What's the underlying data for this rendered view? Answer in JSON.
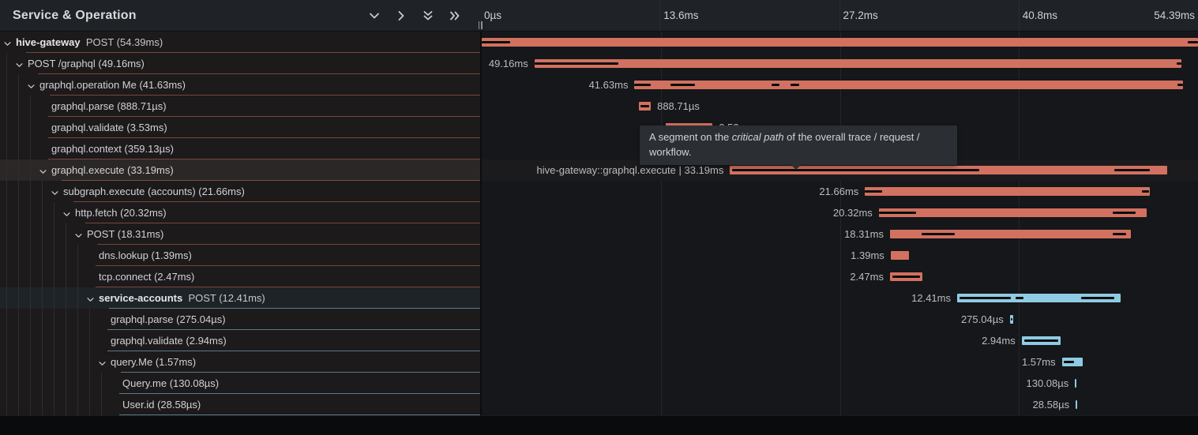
{
  "colors": {
    "salmon": "#d2715f",
    "blue": "#8fcbe2",
    "salmon_underline": "rgba(210,113,95,0.50)",
    "blue_underline": "rgba(143,203,226,0.55)",
    "critical_path_black": "#0c0c0e"
  },
  "header": {
    "title": "Service & Operation",
    "icons": [
      "chevron-down",
      "chevron-right",
      "chevrons-down",
      "chevrons-right"
    ]
  },
  "timeline": {
    "total_ms": 54.39,
    "axis_ticks": [
      {
        "label": "0µs",
        "pos_pct": 0,
        "align": "left"
      },
      {
        "label": "13.6ms",
        "pos_pct": 25,
        "align": "left"
      },
      {
        "label": "27.2ms",
        "pos_pct": 50,
        "align": "left"
      },
      {
        "label": "40.8ms",
        "pos_pct": 75,
        "align": "left"
      },
      {
        "label": "54.39ms",
        "pos_pct": 100,
        "align": "right"
      }
    ]
  },
  "tooltip": {
    "pre": "A segment on the ",
    "italic": "critical path",
    "post": " of the overall trace / request / workflow."
  },
  "chart_data": {
    "type": "gantt-trace-waterfall",
    "title": "Service & Operation trace",
    "x_unit": "ms",
    "x_range": [
      0,
      54.39
    ],
    "services": [
      "hive-gateway",
      "service-accounts"
    ]
  },
  "rows": [
    {
      "service": "hive-gateway",
      "label": "POST (54.39ms)",
      "depth": 0,
      "expandable": true,
      "color": "salmon",
      "bar": {
        "start_ms": 0,
        "duration_ms": 54.39,
        "label": "",
        "label_side": "none",
        "critical_segments": [
          [
            0,
            4
          ],
          [
            98.6,
            100
          ]
        ]
      }
    },
    {
      "label": "POST /graphql (49.16ms)",
      "depth": 1,
      "expandable": true,
      "color": "salmon",
      "bar": {
        "start_ms": 4.0,
        "duration_ms": 49.16,
        "label": "49.16ms",
        "label_side": "left",
        "critical_segments": [
          [
            0,
            13
          ],
          [
            99.2,
            100
          ]
        ]
      }
    },
    {
      "label": "graphql.operation Me (41.63ms)",
      "depth": 2,
      "expandable": true,
      "color": "salmon",
      "bar": {
        "start_ms": 11.6,
        "duration_ms": 41.63,
        "label": "41.63ms",
        "label_side": "left",
        "critical_segments": [
          [
            0,
            3
          ],
          [
            6.5,
            11
          ],
          [
            25,
            26.5
          ],
          [
            28.5,
            30
          ],
          [
            99,
            100
          ]
        ]
      }
    },
    {
      "label": "graphql.parse (888.71µs)",
      "depth": 3,
      "expandable": false,
      "color": "salmon",
      "bar": {
        "start_ms": 11.95,
        "duration_ms": 0.889,
        "label": "888.71µs",
        "label_side": "right",
        "critical_segments": [
          [
            14,
            86
          ]
        ]
      }
    },
    {
      "label": "graphql.validate (3.53ms)",
      "depth": 3,
      "expandable": false,
      "color": "salmon",
      "bar": {
        "start_ms": 14.0,
        "duration_ms": 3.53,
        "label": "3.53ms",
        "label_side": "right",
        "critical_segments": [
          [
            8,
            92
          ]
        ]
      }
    },
    {
      "label": "graphql.context (359.13µs)",
      "depth": 3,
      "expandable": false,
      "color": "salmon",
      "bar": {
        "start_ms": 17.6,
        "duration_ms": 0.359,
        "label": "359.13µs",
        "label_side": "right",
        "critical_segments": []
      }
    },
    {
      "label": "graphql.execute (33.19ms)",
      "depth": 3,
      "expandable": true,
      "color": "salmon",
      "highlight": "hover",
      "bar": {
        "start_ms": 18.85,
        "duration_ms": 33.19,
        "label": "hive-gateway::graphql.execute | 33.19ms",
        "label_side": "left",
        "critical_segments": [
          [
            0.5,
            57
          ],
          [
            88,
            96
          ]
        ]
      }
    },
    {
      "label": "subgraph.execute (accounts) (21.66ms)",
      "depth": 4,
      "expandable": true,
      "color": "salmon",
      "bar": {
        "start_ms": 29.1,
        "duration_ms": 21.66,
        "label": "21.66ms",
        "label_side": "left",
        "critical_segments": [
          [
            0,
            6
          ],
          [
            97,
            99.5
          ]
        ]
      }
    },
    {
      "label": "http.fetch (20.32ms)",
      "depth": 5,
      "expandable": true,
      "color": "salmon",
      "bar": {
        "start_ms": 30.15,
        "duration_ms": 20.32,
        "label": "20.32ms",
        "label_side": "left",
        "critical_segments": [
          [
            0,
            14
          ],
          [
            87.5,
            96
          ]
        ]
      }
    },
    {
      "label": "POST (18.31ms)",
      "depth": 6,
      "expandable": true,
      "color": "salmon",
      "bar": {
        "start_ms": 31.0,
        "duration_ms": 18.31,
        "label": "18.31ms",
        "label_side": "left",
        "critical_segments": [
          [
            13,
            27
          ],
          [
            92.5,
            98
          ]
        ]
      }
    },
    {
      "label": "dns.lookup (1.39ms)",
      "depth": 7,
      "expandable": false,
      "color": "salmon",
      "bar": {
        "start_ms": 31.05,
        "duration_ms": 1.39,
        "label": "1.39ms",
        "label_side": "left",
        "critical_segments": []
      }
    },
    {
      "label": "tcp.connect (2.47ms)",
      "depth": 7,
      "expandable": false,
      "color": "salmon",
      "bar": {
        "start_ms": 31.0,
        "duration_ms": 2.47,
        "label": "2.47ms",
        "label_side": "left",
        "critical_segments": [
          [
            8,
            92
          ]
        ]
      }
    },
    {
      "service": "service-accounts",
      "label": "POST (12.41ms)",
      "depth": 7,
      "expandable": true,
      "color": "blue",
      "highlight": "selected",
      "bar": {
        "start_ms": 36.1,
        "duration_ms": 12.41,
        "label": "12.41ms",
        "label_side": "left",
        "critical_segments": [
          [
            1.5,
            33
          ],
          [
            36,
            40.5
          ],
          [
            76,
            96
          ]
        ]
      }
    },
    {
      "label": "graphql.parse (275.04µs)",
      "depth": 8,
      "expandable": false,
      "color": "blue",
      "bar": {
        "start_ms": 40.1,
        "duration_ms": 0.275,
        "label": "275.04µs",
        "label_side": "left",
        "critical_segments": [
          [
            30,
            70
          ]
        ]
      }
    },
    {
      "label": "graphql.validate (2.94ms)",
      "depth": 8,
      "expandable": false,
      "color": "blue",
      "bar": {
        "start_ms": 41.0,
        "duration_ms": 2.94,
        "label": "2.94ms",
        "label_side": "left",
        "critical_segments": [
          [
            6,
            94
          ]
        ]
      }
    },
    {
      "label": "query.Me (1.57ms)",
      "depth": 8,
      "expandable": true,
      "color": "blue",
      "bar": {
        "start_ms": 44.05,
        "duration_ms": 1.57,
        "label": "1.57ms",
        "label_side": "left",
        "critical_segments": [
          [
            8,
            58
          ]
        ]
      }
    },
    {
      "label": "Query.me (130.08µs)",
      "depth": 9,
      "expandable": false,
      "color": "blue",
      "bar": {
        "start_ms": 45.05,
        "duration_ms": 0.13,
        "label": "130.08µs",
        "label_side": "left",
        "critical_segments": []
      }
    },
    {
      "label": "User.id (28.58µs)",
      "depth": 9,
      "expandable": false,
      "color": "blue",
      "bar": {
        "start_ms": 45.1,
        "duration_ms": 0.0286,
        "label": "28.58µs",
        "label_side": "left",
        "critical_segments": []
      }
    }
  ]
}
